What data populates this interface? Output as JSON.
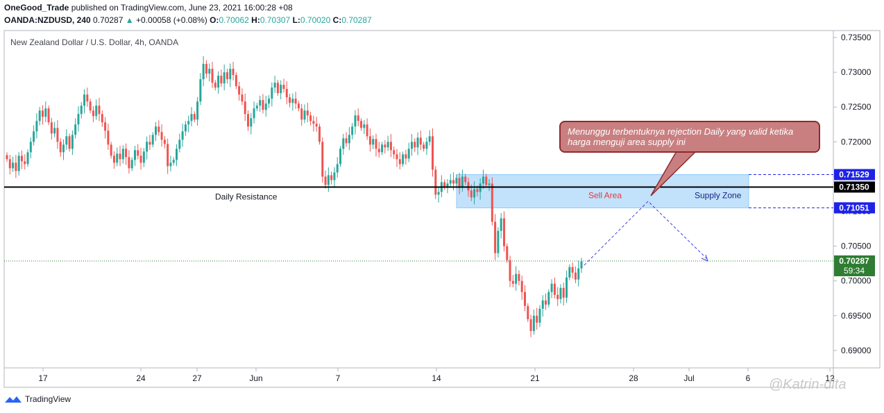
{
  "header": {
    "author": "OneGood_Trade",
    "published": "published on TradingView.com, June 23, 2021 16:00:28 +08",
    "symbol": "OANDA:NZDUSD, 240",
    "last": "0.70287",
    "change": "+0.00058 (+0.08%)",
    "o_label": "O:",
    "o": "0.70062",
    "h_label": "H:",
    "h": "0.70307",
    "l_label": "L:",
    "l": "0.70020",
    "c_label": "C:",
    "c": "0.70287"
  },
  "callout_text": "Menunggu terbentuknya rejection Daily yang valid ketika harga menguji area supply ini",
  "footer": {
    "brand": "TradingView"
  },
  "watermark": "@Katrin-dita",
  "colors": {
    "up": "#26a69a",
    "down": "#ef5350",
    "zone": "#bbdefb",
    "resistance": "#000000",
    "tag_blue": "#1e22e6",
    "tag_green": "#2e7d32"
  },
  "chart_data": {
    "type": "candlestick",
    "title": "New Zealand Dollar / U.S. Dollar, 4h, OANDA",
    "ylim": [
      0.6875,
      0.736
    ],
    "y_ticks": [
      "0.73500",
      "0.73000",
      "0.72500",
      "0.72000",
      "0.71500",
      "0.71000",
      "0.70500",
      "0.70000",
      "0.69500",
      "0.69000"
    ],
    "y_tick_values": [
      0.735,
      0.73,
      0.725,
      0.72,
      0.715,
      0.71,
      0.705,
      0.7,
      0.695,
      0.69
    ],
    "x_ticks": [
      "17",
      "24",
      "27",
      "Jun",
      "7",
      "14",
      "21",
      "28",
      "Jul",
      "6",
      "12"
    ],
    "x_tick_dates": [
      "2021-05-17",
      "2021-05-24",
      "2021-05-27",
      "2021-06-01",
      "2021-06-07",
      "2021-06-14",
      "2021-06-21",
      "2021-06-28",
      "2021-07-01",
      "2021-07-06",
      "2021-07-12"
    ],
    "closes": [
      0.7175,
      0.7162,
      0.717,
      0.7158,
      0.718,
      0.7172,
      0.7168,
      0.7185,
      0.72,
      0.7215,
      0.723,
      0.7245,
      0.7236,
      0.7248,
      0.7228,
      0.7212,
      0.722,
      0.72,
      0.7185,
      0.7196,
      0.7208,
      0.719,
      0.721,
      0.7225,
      0.724,
      0.7252,
      0.7268,
      0.7258,
      0.7245,
      0.7237,
      0.7252,
      0.724,
      0.7228,
      0.7216,
      0.7196,
      0.718,
      0.717,
      0.7183,
      0.7175,
      0.719,
      0.7178,
      0.7162,
      0.7174,
      0.7188,
      0.718,
      0.717,
      0.7186,
      0.72,
      0.7196,
      0.721,
      0.7222,
      0.7214,
      0.7203,
      0.7197,
      0.7165,
      0.717,
      0.7174,
      0.719,
      0.7203,
      0.7215,
      0.7225,
      0.723,
      0.724,
      0.7232,
      0.7258,
      0.729,
      0.7312,
      0.7298,
      0.7305,
      0.7285,
      0.7278,
      0.7295,
      0.7284,
      0.73,
      0.729,
      0.7305,
      0.7296,
      0.728,
      0.7268,
      0.7258,
      0.724,
      0.7222,
      0.7234,
      0.7248,
      0.7252,
      0.726,
      0.7246,
      0.7255,
      0.7262,
      0.7278,
      0.7285,
      0.727,
      0.7282,
      0.7276,
      0.7264,
      0.7256,
      0.7262,
      0.7255,
      0.7248,
      0.7232,
      0.7245,
      0.7238,
      0.723,
      0.7226,
      0.7222,
      0.72,
      0.715,
      0.7138,
      0.7152,
      0.7145,
      0.7156,
      0.7168,
      0.719,
      0.7205,
      0.7198,
      0.721,
      0.7222,
      0.7238,
      0.723,
      0.722,
      0.7225,
      0.7208,
      0.7196,
      0.7204,
      0.719,
      0.7185,
      0.7196,
      0.7192,
      0.72,
      0.7188,
      0.7182,
      0.7175,
      0.7168,
      0.7182,
      0.7176,
      0.719,
      0.72,
      0.7192,
      0.7206,
      0.7196,
      0.719,
      0.72,
      0.7208,
      0.716,
      0.7124,
      0.7128,
      0.7142,
      0.7135,
      0.714,
      0.7145,
      0.714,
      0.7148,
      0.7136,
      0.715,
      0.7142,
      0.713,
      0.712,
      0.7132,
      0.7128,
      0.714,
      0.715,
      0.7138,
      0.714,
      0.7085,
      0.704,
      0.7072,
      0.709,
      0.705,
      0.703,
      0.7,
      0.6996,
      0.701,
      0.7,
      0.6984,
      0.6964,
      0.6945,
      0.6928,
      0.695,
      0.694,
      0.696,
      0.6972,
      0.6966,
      0.6984,
      0.6996,
      0.698,
      0.6974,
      0.699,
      0.6976,
      0.7005,
      0.702,
      0.7012,
      0.7002,
      0.7018,
      0.7028
    ]
  },
  "annotations": {
    "resistance_label": "Daily Resistance",
    "resistance_price": "0.71350",
    "resistance_value": 0.7135,
    "zone_top_value": 0.71529,
    "zone_bottom_value": 0.71051,
    "zone_top_label": "0.71529",
    "zone_bottom_label": "0.71051",
    "sell_area": "Sell Area",
    "supply_zone": "Supply Zone",
    "current_price": "0.70287",
    "current_value": 0.70287,
    "countdown": "59:34"
  }
}
